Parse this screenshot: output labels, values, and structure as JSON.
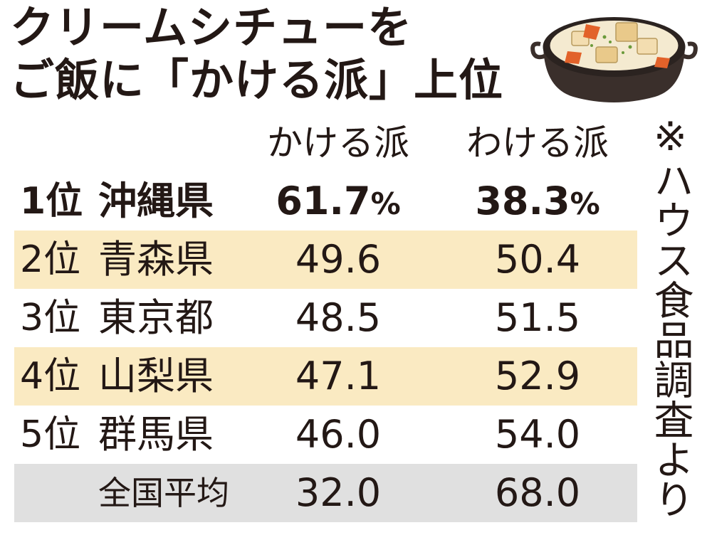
{
  "title": {
    "line1": "クリームシチューを",
    "line2": "ご飯に「かける派」上位"
  },
  "source_note": "※ハウス食品調査より",
  "headers": {
    "kakeru": "かける派",
    "wakeru": "わける派"
  },
  "percent_symbol": "%",
  "colors": {
    "band": "#faeac2",
    "average_band": "#e0e0e0",
    "text": "#231815"
  },
  "illustration": "cream-stew-pot",
  "chart_data": {
    "type": "table",
    "columns": [
      "",
      "",
      "かける派",
      "わける派"
    ],
    "rows": [
      {
        "rank": "1位",
        "prefecture": "沖縄県",
        "kakeru": "61.7",
        "wakeru": "38.3"
      },
      {
        "rank": "2位",
        "prefecture": "青森県",
        "kakeru": "49.6",
        "wakeru": "50.4"
      },
      {
        "rank": "3位",
        "prefecture": "東京都",
        "kakeru": "48.5",
        "wakeru": "51.5"
      },
      {
        "rank": "4位",
        "prefecture": "山梨県",
        "kakeru": "47.1",
        "wakeru": "52.9"
      },
      {
        "rank": "5位",
        "prefecture": "群馬県",
        "kakeru": "46.0",
        "wakeru": "54.0"
      },
      {
        "rank": "",
        "prefecture": "全国平均",
        "kakeru": "32.0",
        "wakeru": "68.0"
      }
    ]
  }
}
